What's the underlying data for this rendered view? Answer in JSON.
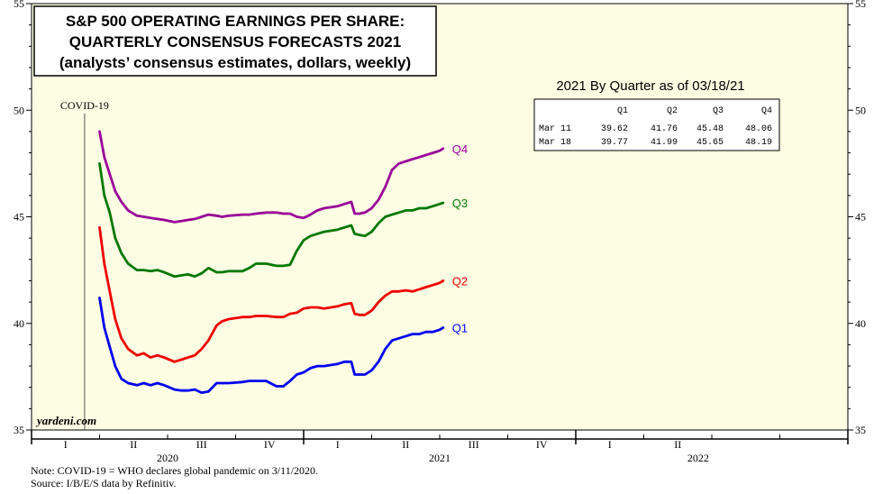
{
  "chart_data": {
    "type": "line",
    "title_lines": [
      "S&P 500 OPERATING EARNINGS PER SHARE:",
      "QUARTERLY CONSENSUS FORECASTS 2021",
      "(analysts’ consensus estimates, dollars, weekly)"
    ],
    "ylim": [
      35,
      55
    ],
    "y_ticks": [
      35,
      40,
      45,
      50,
      55
    ],
    "y_tick_labels": [
      "35",
      "40",
      "45",
      "50",
      "55"
    ],
    "x_range": [
      0,
      12
    ],
    "quarter_labels": [
      "I",
      "II",
      "III",
      "IV",
      "I",
      "II",
      "III",
      "IV",
      "I",
      "II"
    ],
    "year_labels": [
      {
        "label": "2020",
        "x": 2
      },
      {
        "label": "2021",
        "x": 6
      },
      {
        "label": "2022",
        "x": 9.8
      }
    ],
    "annotation": {
      "label": "COVID-19",
      "x": 0.78
    },
    "watermark": "yardeni.com",
    "background_color": "#fdfde3",
    "series": [
      {
        "name": "Q1",
        "color": "#0000ee",
        "x": [
          1.0,
          1.07,
          1.15,
          1.23,
          1.32,
          1.42,
          1.55,
          1.65,
          1.75,
          1.85,
          1.95,
          2.1,
          2.2,
          2.3,
          2.4,
          2.5,
          2.6,
          2.72,
          2.8,
          2.9,
          3.1,
          3.2,
          3.3,
          3.45,
          3.6,
          3.7,
          3.8,
          3.9,
          4.0,
          4.1,
          4.2,
          4.3,
          4.5,
          4.6,
          4.7,
          4.75,
          4.82,
          4.9,
          5.0,
          5.1,
          5.2,
          5.3,
          5.4,
          5.5,
          5.6,
          5.7,
          5.8,
          5.9,
          6.0,
          6.05
        ],
        "values": [
          41.2,
          39.8,
          38.9,
          38.0,
          37.4,
          37.2,
          37.1,
          37.2,
          37.1,
          37.2,
          37.1,
          36.9,
          36.85,
          36.85,
          36.9,
          36.75,
          36.8,
          37.2,
          37.2,
          37.2,
          37.25,
          37.3,
          37.3,
          37.3,
          37.05,
          37.05,
          37.3,
          37.6,
          37.7,
          37.9,
          38.0,
          38.0,
          38.1,
          38.2,
          38.2,
          37.6,
          37.6,
          37.6,
          37.8,
          38.2,
          38.8,
          39.2,
          39.3,
          39.4,
          39.5,
          39.5,
          39.6,
          39.6,
          39.7,
          39.8
        ]
      },
      {
        "name": "Q2",
        "color": "#ee0000",
        "x": [
          1.0,
          1.07,
          1.15,
          1.23,
          1.32,
          1.42,
          1.55,
          1.65,
          1.75,
          1.85,
          1.95,
          2.1,
          2.2,
          2.3,
          2.4,
          2.5,
          2.6,
          2.72,
          2.8,
          2.9,
          3.1,
          3.2,
          3.3,
          3.45,
          3.6,
          3.7,
          3.8,
          3.9,
          4.0,
          4.1,
          4.2,
          4.3,
          4.5,
          4.6,
          4.7,
          4.75,
          4.82,
          4.9,
          5.0,
          5.1,
          5.2,
          5.3,
          5.4,
          5.5,
          5.6,
          5.7,
          5.8,
          5.9,
          6.0,
          6.05
        ],
        "values": [
          44.5,
          42.8,
          41.5,
          40.2,
          39.3,
          38.8,
          38.5,
          38.6,
          38.4,
          38.5,
          38.4,
          38.2,
          38.3,
          38.4,
          38.5,
          38.8,
          39.2,
          39.9,
          40.1,
          40.2,
          40.3,
          40.3,
          40.35,
          40.35,
          40.3,
          40.3,
          40.45,
          40.5,
          40.7,
          40.75,
          40.75,
          40.7,
          40.8,
          40.9,
          40.95,
          40.45,
          40.4,
          40.4,
          40.6,
          41.0,
          41.3,
          41.5,
          41.5,
          41.55,
          41.5,
          41.6,
          41.7,
          41.8,
          41.9,
          42.0
        ]
      },
      {
        "name": "Q3",
        "color": "#007700",
        "x": [
          1.0,
          1.07,
          1.15,
          1.23,
          1.32,
          1.42,
          1.55,
          1.65,
          1.75,
          1.85,
          1.95,
          2.1,
          2.2,
          2.3,
          2.4,
          2.5,
          2.6,
          2.72,
          2.8,
          2.9,
          3.1,
          3.2,
          3.3,
          3.45,
          3.6,
          3.7,
          3.8,
          3.9,
          4.0,
          4.1,
          4.2,
          4.3,
          4.5,
          4.6,
          4.7,
          4.75,
          4.82,
          4.9,
          5.0,
          5.1,
          5.2,
          5.3,
          5.4,
          5.5,
          5.6,
          5.7,
          5.8,
          5.9,
          6.0,
          6.05
        ],
        "values": [
          47.5,
          46.0,
          45.2,
          44.0,
          43.3,
          42.8,
          42.5,
          42.5,
          42.45,
          42.5,
          42.4,
          42.2,
          42.25,
          42.3,
          42.2,
          42.35,
          42.6,
          42.4,
          42.4,
          42.45,
          42.45,
          42.6,
          42.8,
          42.8,
          42.7,
          42.7,
          42.75,
          43.4,
          43.9,
          44.1,
          44.2,
          44.3,
          44.4,
          44.5,
          44.6,
          44.2,
          44.15,
          44.1,
          44.3,
          44.7,
          45.0,
          45.1,
          45.2,
          45.3,
          45.3,
          45.4,
          45.4,
          45.5,
          45.6,
          45.65
        ]
      },
      {
        "name": "Q4",
        "color": "#990099",
        "x": [
          1.0,
          1.07,
          1.15,
          1.23,
          1.32,
          1.42,
          1.55,
          1.65,
          1.75,
          1.85,
          1.95,
          2.1,
          2.2,
          2.3,
          2.4,
          2.5,
          2.6,
          2.72,
          2.8,
          2.9,
          3.1,
          3.2,
          3.3,
          3.45,
          3.6,
          3.7,
          3.8,
          3.9,
          4.0,
          4.1,
          4.2,
          4.3,
          4.5,
          4.6,
          4.7,
          4.75,
          4.82,
          4.9,
          5.0,
          5.1,
          5.2,
          5.3,
          5.4,
          5.5,
          5.6,
          5.7,
          5.8,
          5.9,
          6.0,
          6.05
        ],
        "values": [
          49.0,
          47.8,
          47.0,
          46.2,
          45.7,
          45.3,
          45.05,
          45.0,
          44.95,
          44.9,
          44.85,
          44.75,
          44.8,
          44.85,
          44.9,
          45.0,
          45.1,
          45.05,
          45.0,
          45.05,
          45.1,
          45.1,
          45.15,
          45.2,
          45.2,
          45.15,
          45.15,
          45.0,
          44.95,
          45.1,
          45.3,
          45.4,
          45.5,
          45.6,
          45.7,
          45.15,
          45.15,
          45.2,
          45.4,
          45.8,
          46.4,
          47.2,
          47.5,
          47.6,
          47.7,
          47.8,
          47.9,
          48.0,
          48.1,
          48.2
        ]
      }
    ],
    "table": {
      "title": "2021 By Quarter as of 03/18/21",
      "headers": [
        "",
        "Q1",
        "Q2",
        "Q3",
        "Q4"
      ],
      "rows": [
        [
          "Mar 11",
          "39.62",
          "41.76",
          "45.48",
          "48.06"
        ],
        [
          "Mar 18",
          "39.77",
          "41.99",
          "45.65",
          "48.19"
        ]
      ]
    }
  },
  "notes": {
    "note": "Note: COVID-19 = WHO declares global pandemic on 3/11/2020.",
    "source": "Source: I/B/E/S data by Refinitiv."
  }
}
